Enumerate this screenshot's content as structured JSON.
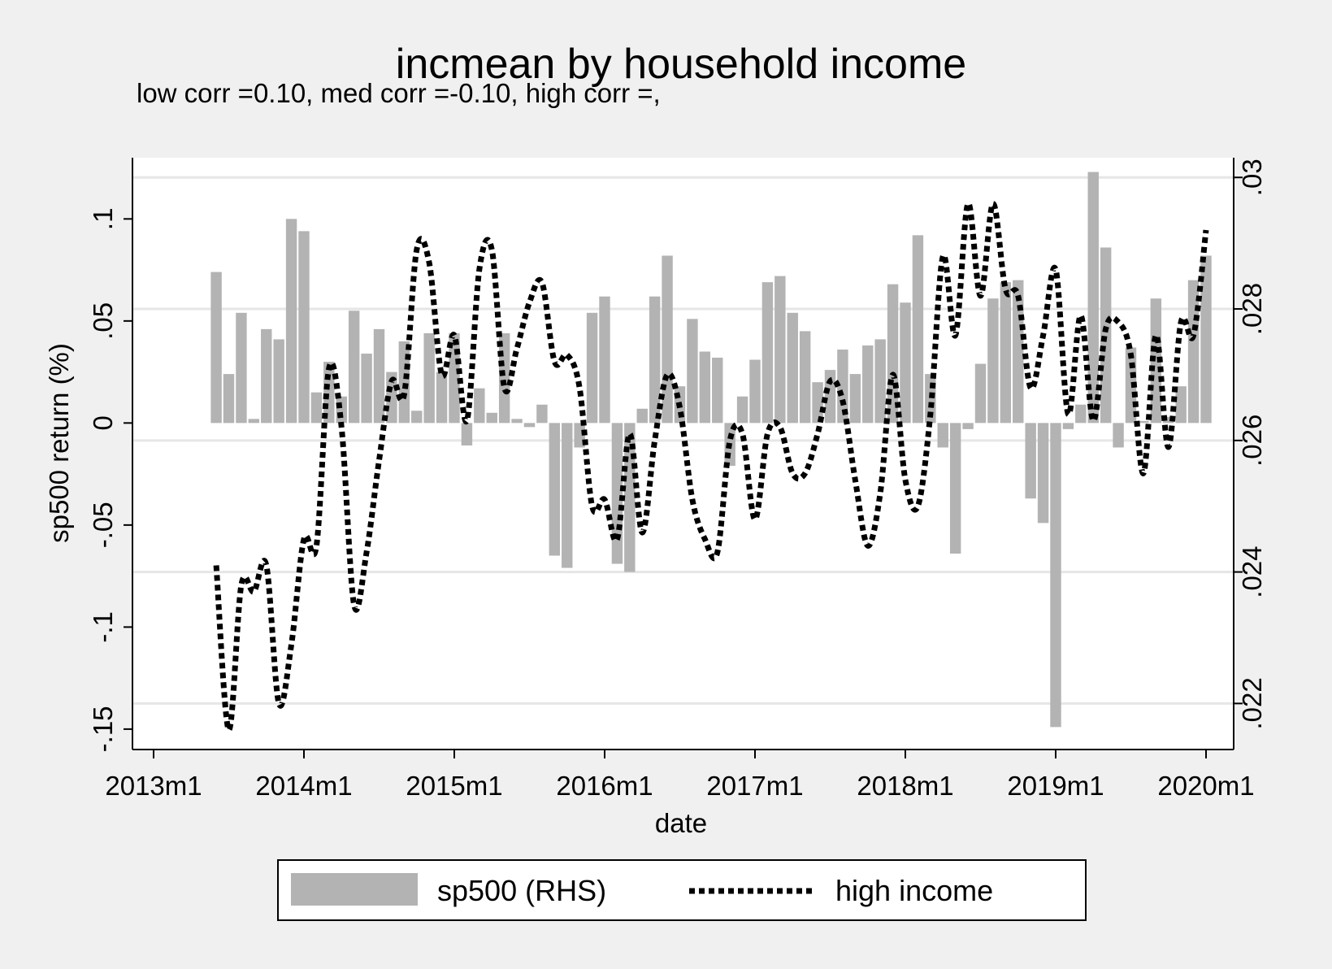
{
  "chart_data": {
    "type": "bar+line",
    "title": "incmean by household income",
    "subtitle": "low corr =0.10, med corr =-0.10, high corr =,",
    "xlabel": "date",
    "ylabel_left": "sp500 return (%)",
    "ylabel_right": "",
    "x_ticks": [
      "2013m1",
      "2014m1",
      "2015m1",
      "2016m1",
      "2017m1",
      "2018m1",
      "2019m1",
      "2020m1"
    ],
    "y_left_ticks": [
      "-.15",
      "-.1",
      "-.05",
      "0",
      ".05",
      ".1"
    ],
    "y_right_ticks": [
      ".022",
      ".024",
      ".026",
      ".028",
      ".03"
    ],
    "y_left_range": [
      -0.16,
      0.13
    ],
    "y_right_range": [
      0.0213,
      0.0303
    ],
    "grid": "horizontal, right axis",
    "legend_position": "bottom",
    "series": [
      {
        "name": "sp500 (RHS)",
        "type": "bar",
        "color": "#b3b3b3",
        "start": "2013m6",
        "values": [
          0.074,
          0.024,
          0.054,
          0.002,
          0.046,
          0.041,
          0.1,
          0.094,
          0.015,
          0.03,
          0.013,
          0.055,
          0.034,
          0.046,
          0.025,
          0.04,
          0.006,
          0.044,
          0.025,
          0.044,
          -0.011,
          0.017,
          0.005,
          0.044,
          0.002,
          -0.002,
          0.009,
          -0.065,
          -0.071,
          -0.012,
          0.054,
          0.062,
          -0.069,
          -0.073,
          0.007,
          0.062,
          0.082,
          0.018,
          0.051,
          0.035,
          0.032,
          -0.021,
          0.013,
          0.031,
          0.069,
          0.072,
          0.054,
          0.045,
          0.02,
          0.026,
          0.036,
          0.024,
          0.038,
          0.041,
          0.068,
          0.059,
          0.092,
          0.024,
          -0.012,
          -0.064,
          -0.003,
          0.029,
          0.061,
          0.069,
          0.07,
          -0.037,
          -0.049,
          -0.149,
          -0.003,
          0.009,
          0.123,
          0.086,
          -0.012,
          0.037,
          0.001,
          0.061,
          0.003,
          0.018,
          0.07,
          0.082
        ]
      },
      {
        "name": "high income",
        "type": "line",
        "style": "dotted",
        "color": "#000000",
        "start": "2013m6",
        "values": [
          0.0241,
          0.0216,
          0.0238,
          0.0237,
          0.0241,
          0.022,
          0.0229,
          0.0245,
          0.0244,
          0.0271,
          0.0262,
          0.0235,
          0.0243,
          0.0257,
          0.0269,
          0.0267,
          0.0289,
          0.0287,
          0.027,
          0.0276,
          0.0263,
          0.0286,
          0.0289,
          0.0268,
          0.0274,
          0.0281,
          0.0284,
          0.0272,
          0.0273,
          0.0268,
          0.025,
          0.0251,
          0.0245,
          0.0261,
          0.0246,
          0.026,
          0.027,
          0.0265,
          0.0251,
          0.0245,
          0.0243,
          0.026,
          0.0261,
          0.0248,
          0.0261,
          0.0262,
          0.0255,
          0.0255,
          0.0261,
          0.0269,
          0.0266,
          0.0254,
          0.0244,
          0.0252,
          0.027,
          0.0254,
          0.025,
          0.0264,
          0.0288,
          0.0276,
          0.0296,
          0.0282,
          0.0296,
          0.0283,
          0.0282,
          0.0268,
          0.0276,
          0.0286,
          0.0264,
          0.0279,
          0.0263,
          0.0277,
          0.0278,
          0.0273,
          0.0255,
          0.0276,
          0.0259,
          0.0278,
          0.0276,
          0.0292
        ]
      }
    ]
  }
}
